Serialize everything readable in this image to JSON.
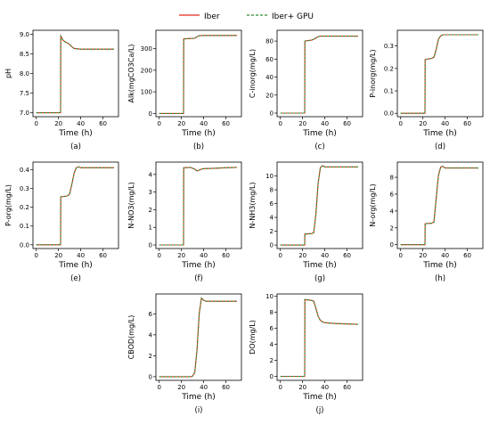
{
  "legend": {
    "entries": [
      {
        "label": "Iber",
        "color": "#e8291c",
        "dash": "solid"
      },
      {
        "label": "Iber+ GPU",
        "color": "#2e8b2e",
        "dash": "dashed"
      }
    ],
    "placement": "top-center"
  },
  "chart_data": [
    {
      "type": "line",
      "caption": "(a)",
      "xlabel": "Time (h)",
      "ylabel": "pH",
      "xlim": [
        -3,
        74
      ],
      "ylim": [
        6.9,
        9.1
      ],
      "xticks": [
        0,
        20,
        40,
        60
      ],
      "yticks": [
        7.0,
        7.5,
        8.0,
        8.5,
        9.0
      ],
      "ytick_labels": [
        "7.0",
        "7.5",
        "8.0",
        "8.5",
        "9.0"
      ],
      "series": [
        {
          "name": "Iber",
          "x": [
            0,
            21.9,
            22,
            24,
            26,
            28,
            30,
            32,
            34,
            36,
            40,
            50,
            60,
            70
          ],
          "y": [
            7.0,
            7.0,
            8.95,
            8.85,
            8.8,
            8.78,
            8.74,
            8.68,
            8.64,
            8.63,
            8.62,
            8.62,
            8.62,
            8.62
          ]
        }
      ]
    },
    {
      "type": "line",
      "caption": "(b)",
      "xlabel": "Time (h)",
      "ylabel": "Alk(mgCO3Ca/L)",
      "xlim": [
        -3,
        74
      ],
      "ylim": [
        -15,
        385
      ],
      "xticks": [
        0,
        20,
        40,
        60
      ],
      "yticks": [
        0,
        100,
        200,
        300
      ],
      "ytick_labels": [
        "0",
        "100",
        "200",
        "300"
      ],
      "series": [
        {
          "name": "Iber",
          "x": [
            0,
            21.9,
            22,
            28,
            32,
            34,
            36,
            40,
            50,
            60,
            70
          ],
          "y": [
            0,
            0,
            345,
            347,
            348,
            355,
            360,
            361,
            361,
            361,
            361
          ]
        }
      ]
    },
    {
      "type": "line",
      "caption": "(c)",
      "xlabel": "Time (h)",
      "ylabel": "C-inorg(mg/L)",
      "xlim": [
        -3,
        74
      ],
      "ylim": [
        -4,
        92
      ],
      "xticks": [
        0,
        20,
        40,
        60
      ],
      "yticks": [
        0,
        20,
        40,
        60,
        80
      ],
      "ytick_labels": [
        "0",
        "20",
        "40",
        "60",
        "80"
      ],
      "series": [
        {
          "name": "Iber",
          "x": [
            0,
            21.9,
            22,
            28,
            30,
            32,
            34,
            36,
            40,
            50,
            60,
            70
          ],
          "y": [
            0,
            0,
            80,
            81,
            82,
            83.5,
            85,
            85.5,
            85.5,
            85.5,
            85.5,
            85.5
          ]
        }
      ]
    },
    {
      "type": "line",
      "caption": "(d)",
      "xlabel": "Time (h)",
      "ylabel": "P-inorg(mg/L)",
      "xlim": [
        -3,
        74
      ],
      "ylim": [
        -0.015,
        0.37
      ],
      "xticks": [
        0,
        20,
        40,
        60
      ],
      "yticks": [
        0.0,
        0.1,
        0.2,
        0.3
      ],
      "ytick_labels": [
        "0.0",
        "0.1",
        "0.2",
        "0.3"
      ],
      "series": [
        {
          "name": "Iber",
          "x": [
            0,
            21.9,
            22,
            28,
            30,
            32,
            34,
            36,
            38,
            40,
            50,
            60,
            70
          ],
          "y": [
            0,
            0,
            0.24,
            0.245,
            0.25,
            0.285,
            0.33,
            0.345,
            0.35,
            0.35,
            0.35,
            0.35,
            0.35
          ]
        }
      ]
    },
    {
      "type": "line",
      "caption": "(e)",
      "xlabel": "Time (h)",
      "ylabel": "P-org(mg/L)",
      "xlim": [
        -3,
        74
      ],
      "ylim": [
        -0.02,
        0.44
      ],
      "xticks": [
        0,
        20,
        40,
        60
      ],
      "yticks": [
        0.0,
        0.1,
        0.2,
        0.3,
        0.4
      ],
      "ytick_labels": [
        "0.0",
        "0.1",
        "0.2",
        "0.3",
        "0.4"
      ],
      "series": [
        {
          "name": "Iber",
          "x": [
            0,
            21.9,
            22,
            28,
            30,
            32,
            34,
            36,
            38,
            40,
            50,
            60,
            70
          ],
          "y": [
            0,
            0,
            0.255,
            0.26,
            0.27,
            0.32,
            0.38,
            0.41,
            0.415,
            0.41,
            0.41,
            0.41,
            0.41
          ]
        }
      ]
    },
    {
      "type": "line",
      "caption": "(f)",
      "xlabel": "Time (h)",
      "ylabel": "N-NO3(mg/L)",
      "xlim": [
        -3,
        74
      ],
      "ylim": [
        -0.2,
        4.7
      ],
      "xticks": [
        0,
        20,
        40,
        60
      ],
      "yticks": [
        0,
        1,
        2,
        3,
        4
      ],
      "ytick_labels": [
        "0",
        "1",
        "2",
        "3",
        "4"
      ],
      "series": [
        {
          "name": "Iber",
          "x": [
            0,
            21.9,
            22,
            28,
            32,
            34,
            36,
            38,
            40,
            50,
            60,
            70
          ],
          "y": [
            0,
            0,
            4.38,
            4.4,
            4.3,
            4.2,
            4.25,
            4.3,
            4.33,
            4.35,
            4.38,
            4.4
          ]
        }
      ]
    },
    {
      "type": "line",
      "caption": "(g)",
      "xlabel": "Time (h)",
      "ylabel": "N-NH3(mg/L)",
      "xlim": [
        -3,
        74
      ],
      "ylim": [
        -0.5,
        12
      ],
      "xticks": [
        0,
        20,
        40,
        60
      ],
      "yticks": [
        0,
        2,
        4,
        6,
        8,
        10
      ],
      "ytick_labels": [
        "0",
        "2",
        "4",
        "6",
        "8",
        "10"
      ],
      "series": [
        {
          "name": "Iber",
          "x": [
            0,
            21.9,
            22,
            28,
            30,
            32,
            34,
            36,
            38,
            40,
            50,
            60,
            70
          ],
          "y": [
            0,
            0,
            1.6,
            1.65,
            1.8,
            4.5,
            9.0,
            11.2,
            11.5,
            11.3,
            11.3,
            11.3,
            11.3
          ]
        }
      ]
    },
    {
      "type": "line",
      "caption": "(h)",
      "xlabel": "Time (h)",
      "ylabel": "N-org(mg/L)",
      "xlim": [
        -3,
        74
      ],
      "ylim": [
        -0.45,
        9.8
      ],
      "xticks": [
        0,
        20,
        40,
        60
      ],
      "yticks": [
        0,
        2,
        4,
        6,
        8
      ],
      "ytick_labels": [
        "0",
        "2",
        "4",
        "6",
        "8"
      ],
      "series": [
        {
          "name": "Iber",
          "x": [
            0,
            21.9,
            22,
            28,
            30,
            32,
            34,
            36,
            38,
            40,
            50,
            60,
            70
          ],
          "y": [
            0,
            0,
            2.5,
            2.55,
            2.7,
            5.5,
            8.2,
            9.2,
            9.3,
            9.1,
            9.1,
            9.1,
            9.1
          ]
        }
      ]
    },
    {
      "type": "line",
      "caption": "(i)",
      "xlabel": "Time (h)",
      "ylabel": "CBOD(mg/L)",
      "xlim": [
        -3,
        74
      ],
      "ylim": [
        -0.35,
        7.9
      ],
      "xticks": [
        0,
        20,
        40,
        60
      ],
      "yticks": [
        0,
        2,
        4,
        6
      ],
      "ytick_labels": [
        "0",
        "2",
        "4",
        "6"
      ],
      "series": [
        {
          "name": "Iber",
          "x": [
            0,
            28,
            30,
            32,
            34,
            36,
            38,
            40,
            42,
            50,
            60,
            70
          ],
          "y": [
            0,
            0,
            0.05,
            0.4,
            2.5,
            6.0,
            7.5,
            7.3,
            7.2,
            7.2,
            7.2,
            7.2
          ]
        }
      ]
    },
    {
      "type": "line",
      "caption": "(j)",
      "xlabel": "Time (h)",
      "ylabel": "DO(mg/L)",
      "xlim": [
        -3,
        74
      ],
      "ylim": [
        -0.5,
        10.3
      ],
      "xticks": [
        0,
        20,
        40,
        60
      ],
      "yticks": [
        0,
        2,
        4,
        6,
        8,
        10
      ],
      "ytick_labels": [
        "0",
        "2",
        "4",
        "6",
        "8",
        "10"
      ],
      "series": [
        {
          "name": "Iber",
          "x": [
            0,
            21.9,
            22,
            28,
            30,
            32,
            34,
            36,
            38,
            40,
            45,
            50,
            60,
            70
          ],
          "y": [
            0,
            0,
            9.6,
            9.5,
            9.4,
            8.5,
            7.5,
            7.0,
            6.8,
            6.7,
            6.65,
            6.6,
            6.55,
            6.5
          ]
        }
      ]
    }
  ]
}
